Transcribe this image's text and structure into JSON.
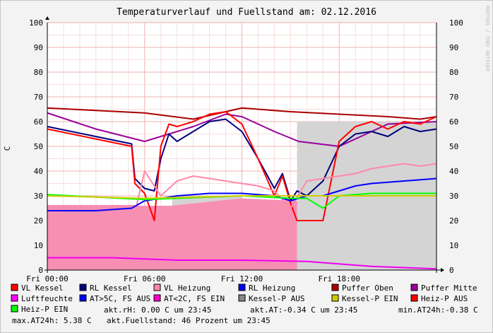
{
  "chart_data": {
    "type": "line",
    "title": "Temperaturverlauf und Fuellstand am: 02.12.2016",
    "ylabel": "C",
    "watermark": "RRDTOOL / TOBI OETIKER",
    "ylim": [
      0,
      100
    ],
    "yticks": [
      0,
      10,
      20,
      30,
      40,
      50,
      60,
      70,
      80,
      90,
      100
    ],
    "xlim_hours": [
      0,
      24
    ],
    "xticks": [
      {
        "hour": 0,
        "label": "Fri 00:00"
      },
      {
        "hour": 6,
        "label": "Fri 06:00"
      },
      {
        "hour": 12,
        "label": "Fri 12:00"
      },
      {
        "hour": 18,
        "label": "Fri 18:00"
      }
    ],
    "grid": true,
    "legend_position": "bottom",
    "legend": [
      {
        "label": "VL Kessel",
        "color": "#ff0000"
      },
      {
        "label": "RL Kessel",
        "color": "#000080"
      },
      {
        "label": "VL Heizung",
        "color": "#ff88aa"
      },
      {
        "label": "RL Heizung",
        "color": "#0000ff"
      },
      {
        "label": "Puffer Oben",
        "color": "#aa0000"
      },
      {
        "label": "Puffer Mitte",
        "color": "#990099"
      },
      {
        "label": "Luftfeuchte",
        "color": "#ff00ff"
      },
      {
        "label": "AT>5C, FS AUS",
        "color": "#0000ff"
      },
      {
        "label": "AT<2C, FS EIN",
        "color": "#ff00cc"
      },
      {
        "label": "Kessel-P AUS",
        "color": "#888888"
      },
      {
        "label": "Kessel-P EIN",
        "color": "#cccc00"
      },
      {
        "label": "Heiz-P AUS",
        "color": "#ff0000"
      },
      {
        "label": "Heiz-P EIN",
        "color": "#00ff00"
      }
    ],
    "stats_line1": {
      "rh": "akt.rH: 0.00 C um 23:45",
      "at": "akt.AT:-0.34 C um 23:45",
      "min": "min.AT24h:-0.38 C"
    },
    "stats_line2": {
      "max": "max.AT24h: 5.38 C",
      "fill": "akt.Fuellstand:   46 Prozent um 23:45"
    },
    "areas": [
      {
        "name": "Kessel-P AUS",
        "color": "#d4d4d4",
        "points": [
          [
            7.7,
            30
          ],
          [
            12.0,
            30
          ],
          [
            12.1,
            28
          ],
          [
            15.4,
            28
          ],
          [
            15.4,
            60
          ],
          [
            24,
            60
          ]
        ]
      },
      {
        "name": "VL Heizung fill",
        "color": "#f78fb3",
        "points": [
          [
            0,
            26
          ],
          [
            7.6,
            26
          ],
          [
            12.0,
            29
          ],
          [
            15.4,
            28
          ]
        ]
      }
    ],
    "series": [
      {
        "name": "Puffer Oben",
        "color": "#aa0000",
        "x": [
          0,
          3,
          6,
          9,
          12,
          15,
          18,
          21,
          23,
          24
        ],
        "y": [
          65.5,
          64.5,
          63.5,
          61,
          65.5,
          64,
          63,
          62,
          61,
          62
        ]
      },
      {
        "name": "Puffer Mitte",
        "color": "#990099",
        "x": [
          0,
          3,
          6,
          9,
          11,
          12,
          14,
          15.5,
          18,
          21,
          24
        ],
        "y": [
          63.5,
          57,
          52,
          58,
          63,
          62,
          56,
          52,
          50,
          59,
          60
        ]
      },
      {
        "name": "RL Kessel",
        "color": "#000080",
        "x": [
          0,
          5.2,
          5.4,
          6,
          6.6,
          7,
          7.5,
          8,
          9,
          10,
          11,
          12,
          13,
          14,
          14.5,
          15,
          15.4,
          16,
          17,
          18,
          19,
          20,
          21,
          22,
          23,
          24
        ],
        "y": [
          58,
          51,
          37,
          33,
          32,
          45,
          55,
          52,
          56,
          60,
          61,
          56,
          45,
          33,
          39,
          28,
          32,
          30,
          36,
          50,
          55,
          56,
          54,
          58,
          56,
          57
        ]
      },
      {
        "name": "VL Kessel",
        "color": "#ff0000",
        "x": [
          0,
          5.2,
          5.4,
          6,
          6.6,
          7,
          7.5,
          8,
          9,
          10,
          11,
          12,
          13,
          14,
          14.5,
          15,
          15.4,
          16,
          17,
          18,
          19,
          20,
          21,
          22,
          23,
          24
        ],
        "y": [
          57,
          50,
          35,
          31,
          20,
          50,
          59,
          58,
          60,
          63,
          64,
          59,
          45,
          30,
          38,
          27,
          20,
          20,
          20,
          52,
          58,
          60,
          57,
          60,
          59,
          62
        ]
      },
      {
        "name": "VL Heizung",
        "color": "#ff88aa",
        "x": [
          0,
          5.5,
          6,
          7,
          8,
          9,
          10,
          11,
          12,
          13,
          14,
          15,
          16,
          17,
          18,
          19,
          20,
          21,
          22,
          23,
          24
        ],
        "y": [
          26,
          26,
          40,
          30,
          36,
          38,
          37,
          36,
          35,
          34,
          32,
          25,
          36,
          37,
          38,
          39,
          41,
          42,
          43,
          42,
          43
        ]
      },
      {
        "name": "RL Heizung",
        "color": "#0000ff",
        "x": [
          0,
          3,
          5.2,
          6,
          7,
          8,
          10,
          12,
          14,
          15,
          16,
          17,
          18,
          19,
          20,
          22,
          24
        ],
        "y": [
          24,
          24,
          25,
          28,
          29,
          30,
          31,
          31,
          30,
          28,
          30,
          30,
          32,
          34,
          35,
          36,
          37
        ]
      },
      {
        "name": "Heiz-P EIN",
        "color": "#00ff00",
        "x": [
          0,
          6,
          12,
          15,
          16,
          17,
          18,
          20,
          24
        ],
        "y": [
          30.5,
          28.5,
          30,
          29,
          29,
          25,
          30,
          31,
          31
        ]
      },
      {
        "name": "Luftfeuchte",
        "color": "#ee00ee",
        "x": [
          0,
          4,
          8,
          12,
          16,
          20,
          24
        ],
        "y": [
          5,
          5,
          4,
          4,
          3.5,
          1.5,
          0.5
        ]
      },
      {
        "name": "Kessel-P EIN",
        "color": "#cccc00",
        "x": [
          0,
          6,
          12,
          18,
          24
        ],
        "y": [
          30,
          29,
          30,
          30,
          30
        ]
      }
    ]
  }
}
